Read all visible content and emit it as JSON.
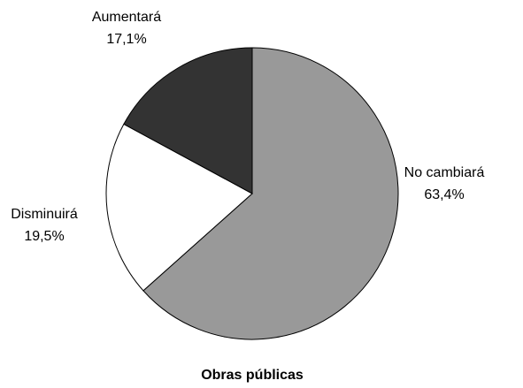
{
  "chart_data": {
    "type": "pie",
    "title": "Obras públicas",
    "categories": [
      "No cambiará",
      "Disminuirá",
      "Aumentará"
    ],
    "values": [
      63.4,
      19.5,
      17.1
    ],
    "value_labels": [
      "63,4%",
      "19,5%",
      "17,1%"
    ],
    "colors": [
      "#999999",
      "#ffffff",
      "#333333"
    ]
  }
}
